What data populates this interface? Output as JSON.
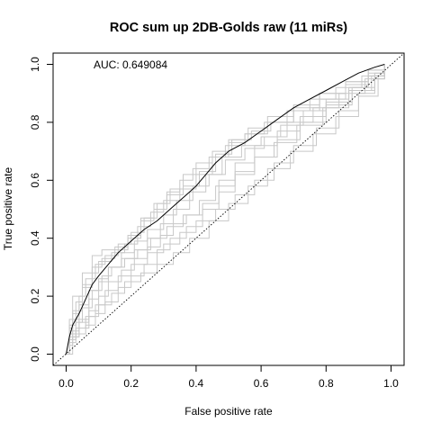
{
  "chart_data": {
    "type": "line",
    "title": "ROC sum up 2DB-Golds raw (11 miRs)",
    "xlabel": "False positive rate",
    "ylabel": "True positive rate",
    "xlim": [
      0,
      1
    ],
    "ylim": [
      0,
      1
    ],
    "x_ticks": [
      "0.0",
      "0.2",
      "0.4",
      "0.6",
      "0.8",
      "1.0"
    ],
    "y_ticks": [
      "0.0",
      "0.2",
      "0.4",
      "0.6",
      "0.8",
      "1.0"
    ],
    "grid": false,
    "annotation": "AUC: 0.649084",
    "colors": {
      "individual": "#c8c8c8",
      "average": "#000000",
      "diagonal": "#000000"
    },
    "average_curve": {
      "x": [
        0.0,
        0.01,
        0.02,
        0.04,
        0.06,
        0.08,
        0.1,
        0.13,
        0.16,
        0.2,
        0.24,
        0.28,
        0.3,
        0.33,
        0.36,
        0.38,
        0.4,
        0.43,
        0.46,
        0.5,
        0.55,
        0.6,
        0.65,
        0.7,
        0.75,
        0.8,
        0.85,
        0.9,
        0.95,
        0.98
      ],
      "y": [
        0.0,
        0.06,
        0.1,
        0.14,
        0.19,
        0.24,
        0.27,
        0.31,
        0.35,
        0.39,
        0.43,
        0.46,
        0.48,
        0.51,
        0.54,
        0.56,
        0.58,
        0.62,
        0.66,
        0.7,
        0.73,
        0.77,
        0.81,
        0.85,
        0.88,
        0.91,
        0.94,
        0.97,
        0.99,
        1.0
      ]
    },
    "individual_curves": [
      {
        "x": [
          0.0,
          0.01,
          0.03,
          0.05,
          0.08,
          0.1,
          0.14,
          0.18,
          0.22,
          0.26,
          0.3,
          0.35,
          0.4,
          0.45,
          0.5,
          0.55,
          0.62,
          0.7,
          0.78,
          0.86,
          0.93,
          0.98
        ],
        "y": [
          0.0,
          0.1,
          0.18,
          0.23,
          0.28,
          0.32,
          0.35,
          0.38,
          0.44,
          0.49,
          0.53,
          0.57,
          0.62,
          0.68,
          0.73,
          0.76,
          0.8,
          0.84,
          0.88,
          0.93,
          0.97,
          1.0
        ]
      },
      {
        "x": [
          0.0,
          0.01,
          0.02,
          0.04,
          0.07,
          0.1,
          0.13,
          0.17,
          0.21,
          0.25,
          0.29,
          0.33,
          0.37,
          0.42,
          0.47,
          0.52,
          0.58,
          0.65,
          0.72,
          0.8,
          0.88,
          0.95,
          0.98
        ],
        "y": [
          0.0,
          0.05,
          0.08,
          0.11,
          0.15,
          0.2,
          0.25,
          0.29,
          0.33,
          0.37,
          0.41,
          0.45,
          0.48,
          0.52,
          0.6,
          0.66,
          0.72,
          0.77,
          0.82,
          0.87,
          0.92,
          0.97,
          1.0
        ]
      },
      {
        "x": [
          0.0,
          0.01,
          0.02,
          0.05,
          0.08,
          0.11,
          0.15,
          0.19,
          0.23,
          0.27,
          0.31,
          0.36,
          0.41,
          0.46,
          0.51,
          0.57,
          0.63,
          0.7,
          0.78,
          0.86,
          0.93,
          0.98
        ],
        "y": [
          0.0,
          0.12,
          0.2,
          0.28,
          0.34,
          0.36,
          0.37,
          0.4,
          0.46,
          0.5,
          0.55,
          0.58,
          0.63,
          0.69,
          0.74,
          0.77,
          0.8,
          0.85,
          0.9,
          0.94,
          0.98,
          1.0
        ]
      },
      {
        "x": [
          0.0,
          0.01,
          0.03,
          0.06,
          0.09,
          0.12,
          0.16,
          0.2,
          0.24,
          0.28,
          0.32,
          0.37,
          0.42,
          0.47,
          0.52,
          0.58,
          0.65,
          0.72,
          0.8,
          0.88,
          0.95,
          0.98
        ],
        "y": [
          0.0,
          0.04,
          0.07,
          0.1,
          0.14,
          0.18,
          0.23,
          0.27,
          0.31,
          0.36,
          0.4,
          0.44,
          0.5,
          0.56,
          0.62,
          0.68,
          0.74,
          0.8,
          0.86,
          0.91,
          0.96,
          1.0
        ]
      },
      {
        "x": [
          0.0,
          0.01,
          0.02,
          0.04,
          0.06,
          0.09,
          0.12,
          0.16,
          0.2,
          0.24,
          0.28,
          0.32,
          0.36,
          0.4,
          0.45,
          0.5,
          0.56,
          0.62,
          0.7,
          0.78,
          0.86,
          0.93,
          0.98
        ],
        "y": [
          0.0,
          0.09,
          0.14,
          0.2,
          0.26,
          0.31,
          0.34,
          0.38,
          0.42,
          0.47,
          0.52,
          0.57,
          0.62,
          0.66,
          0.7,
          0.74,
          0.78,
          0.82,
          0.86,
          0.9,
          0.94,
          0.98,
          1.0
        ]
      },
      {
        "x": [
          0.0,
          0.02,
          0.04,
          0.07,
          0.1,
          0.13,
          0.17,
          0.21,
          0.25,
          0.29,
          0.33,
          0.38,
          0.43,
          0.48,
          0.54,
          0.6,
          0.66,
          0.73,
          0.8,
          0.87,
          0.93,
          0.98
        ],
        "y": [
          0.0,
          0.06,
          0.12,
          0.19,
          0.25,
          0.3,
          0.33,
          0.36,
          0.4,
          0.45,
          0.5,
          0.56,
          0.62,
          0.68,
          0.72,
          0.75,
          0.79,
          0.84,
          0.88,
          0.92,
          0.96,
          1.0
        ]
      },
      {
        "x": [
          0.0,
          0.01,
          0.03,
          0.05,
          0.08,
          0.11,
          0.14,
          0.18,
          0.22,
          0.26,
          0.31,
          0.36,
          0.41,
          0.46,
          0.52,
          0.58,
          0.64,
          0.71,
          0.79,
          0.87,
          0.94,
          0.98
        ],
        "y": [
          0.0,
          0.07,
          0.11,
          0.16,
          0.22,
          0.27,
          0.3,
          0.33,
          0.36,
          0.4,
          0.44,
          0.48,
          0.53,
          0.58,
          0.63,
          0.68,
          0.73,
          0.79,
          0.85,
          0.91,
          0.96,
          1.0
        ]
      },
      {
        "x": [
          0.0,
          0.01,
          0.02,
          0.04,
          0.07,
          0.1,
          0.14,
          0.18,
          0.23,
          0.28,
          0.33,
          0.38,
          0.44,
          0.5,
          0.56,
          0.62,
          0.69,
          0.76,
          0.83,
          0.9,
          0.96,
          0.98
        ],
        "y": [
          0.0,
          0.03,
          0.06,
          0.09,
          0.13,
          0.17,
          0.21,
          0.25,
          0.28,
          0.31,
          0.35,
          0.4,
          0.46,
          0.52,
          0.58,
          0.64,
          0.7,
          0.76,
          0.82,
          0.89,
          0.96,
          1.0
        ]
      },
      {
        "x": [
          0.0,
          0.01,
          0.02,
          0.05,
          0.08,
          0.11,
          0.15,
          0.19,
          0.23,
          0.27,
          0.31,
          0.35,
          0.39,
          0.44,
          0.49,
          0.55,
          0.61,
          0.68,
          0.75,
          0.83,
          0.91,
          0.98
        ],
        "y": [
          0.0,
          0.08,
          0.15,
          0.24,
          0.3,
          0.33,
          0.36,
          0.41,
          0.47,
          0.52,
          0.56,
          0.6,
          0.64,
          0.68,
          0.72,
          0.76,
          0.8,
          0.84,
          0.88,
          0.92,
          0.96,
          1.0
        ]
      },
      {
        "x": [
          0.0,
          0.01,
          0.03,
          0.06,
          0.09,
          0.12,
          0.16,
          0.2,
          0.25,
          0.3,
          0.35,
          0.4,
          0.46,
          0.52,
          0.58,
          0.64,
          0.7,
          0.77,
          0.84,
          0.9,
          0.95,
          0.98
        ],
        "y": [
          0.0,
          0.05,
          0.09,
          0.13,
          0.17,
          0.22,
          0.27,
          0.31,
          0.35,
          0.38,
          0.42,
          0.46,
          0.5,
          0.55,
          0.6,
          0.66,
          0.72,
          0.78,
          0.84,
          0.9,
          0.95,
          1.0
        ]
      },
      {
        "x": [
          0.0,
          0.01,
          0.02,
          0.04,
          0.07,
          0.1,
          0.13,
          0.17,
          0.21,
          0.25,
          0.3,
          0.34,
          0.39,
          0.44,
          0.49,
          0.55,
          0.61,
          0.68,
          0.76,
          0.84,
          0.92,
          0.98
        ],
        "y": [
          0.0,
          0.06,
          0.12,
          0.17,
          0.22,
          0.26,
          0.3,
          0.35,
          0.39,
          0.43,
          0.48,
          0.53,
          0.58,
          0.62,
          0.67,
          0.71,
          0.75,
          0.8,
          0.85,
          0.9,
          0.95,
          1.0
        ]
      }
    ]
  }
}
